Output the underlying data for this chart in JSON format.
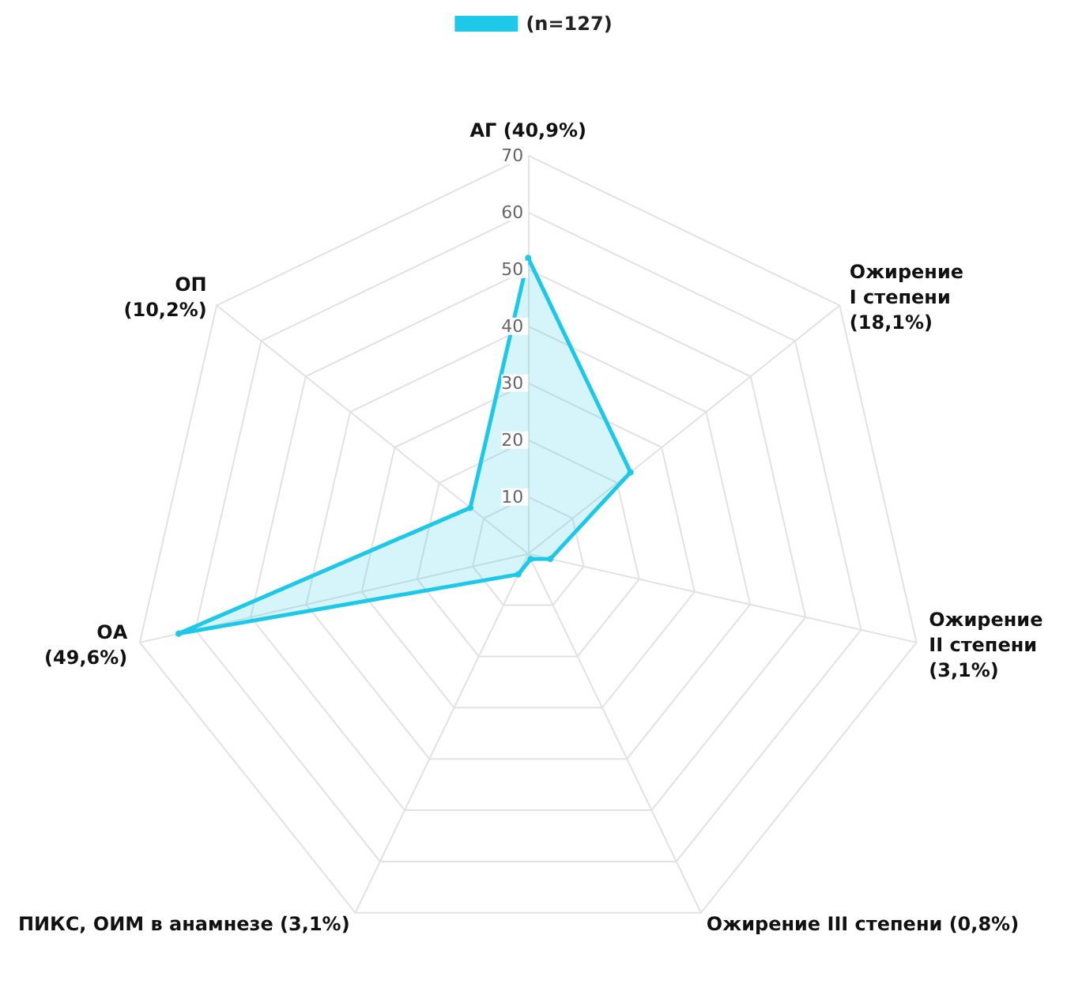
{
  "chart_data": {
    "type": "radar",
    "categories": [
      "АГ (40,9%)",
      "Ожирение\nI степени\n(18,1%)",
      "Ожирение\nII степени\n(3,1%)",
      "Ожирение III степени (0,8%)",
      "ПИКС, ОИМ в анамнезе (3,1%)",
      "ОА\n(49,6%)",
      "ОП\n(10,2%)"
    ],
    "series": [
      {
        "name": "(n=127)",
        "color": "#1ec8e8",
        "values": [
          52,
          23,
          4,
          1,
          4,
          63,
          13
        ]
      }
    ],
    "ylim": [
      0,
      70
    ],
    "yticks": [
      10,
      20,
      30,
      40,
      50,
      60,
      70
    ],
    "legend": "top",
    "marker": "circle",
    "grid": true
  }
}
